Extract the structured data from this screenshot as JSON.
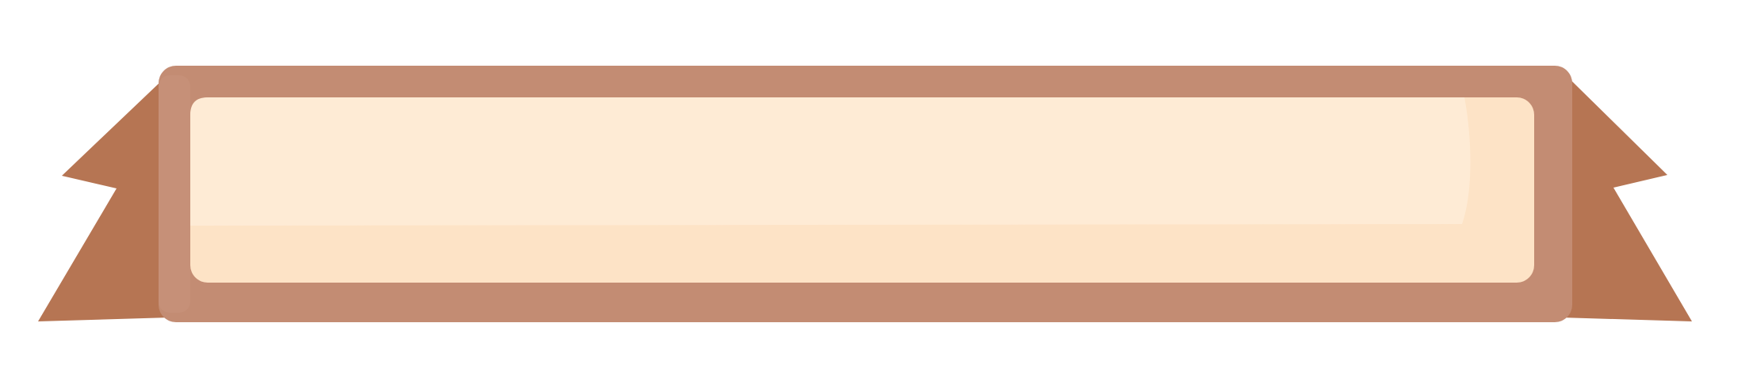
{
  "banner": {
    "colors": {
      "ribbon": "#b67553",
      "ribbon_shadow": "#a8684a",
      "frame": "#c38c73",
      "frame_highlight": "#c8937b",
      "panel_light": "#feebd5",
      "panel_base": "#fde3c6"
    },
    "icon": "ribbon-banner-icon"
  }
}
